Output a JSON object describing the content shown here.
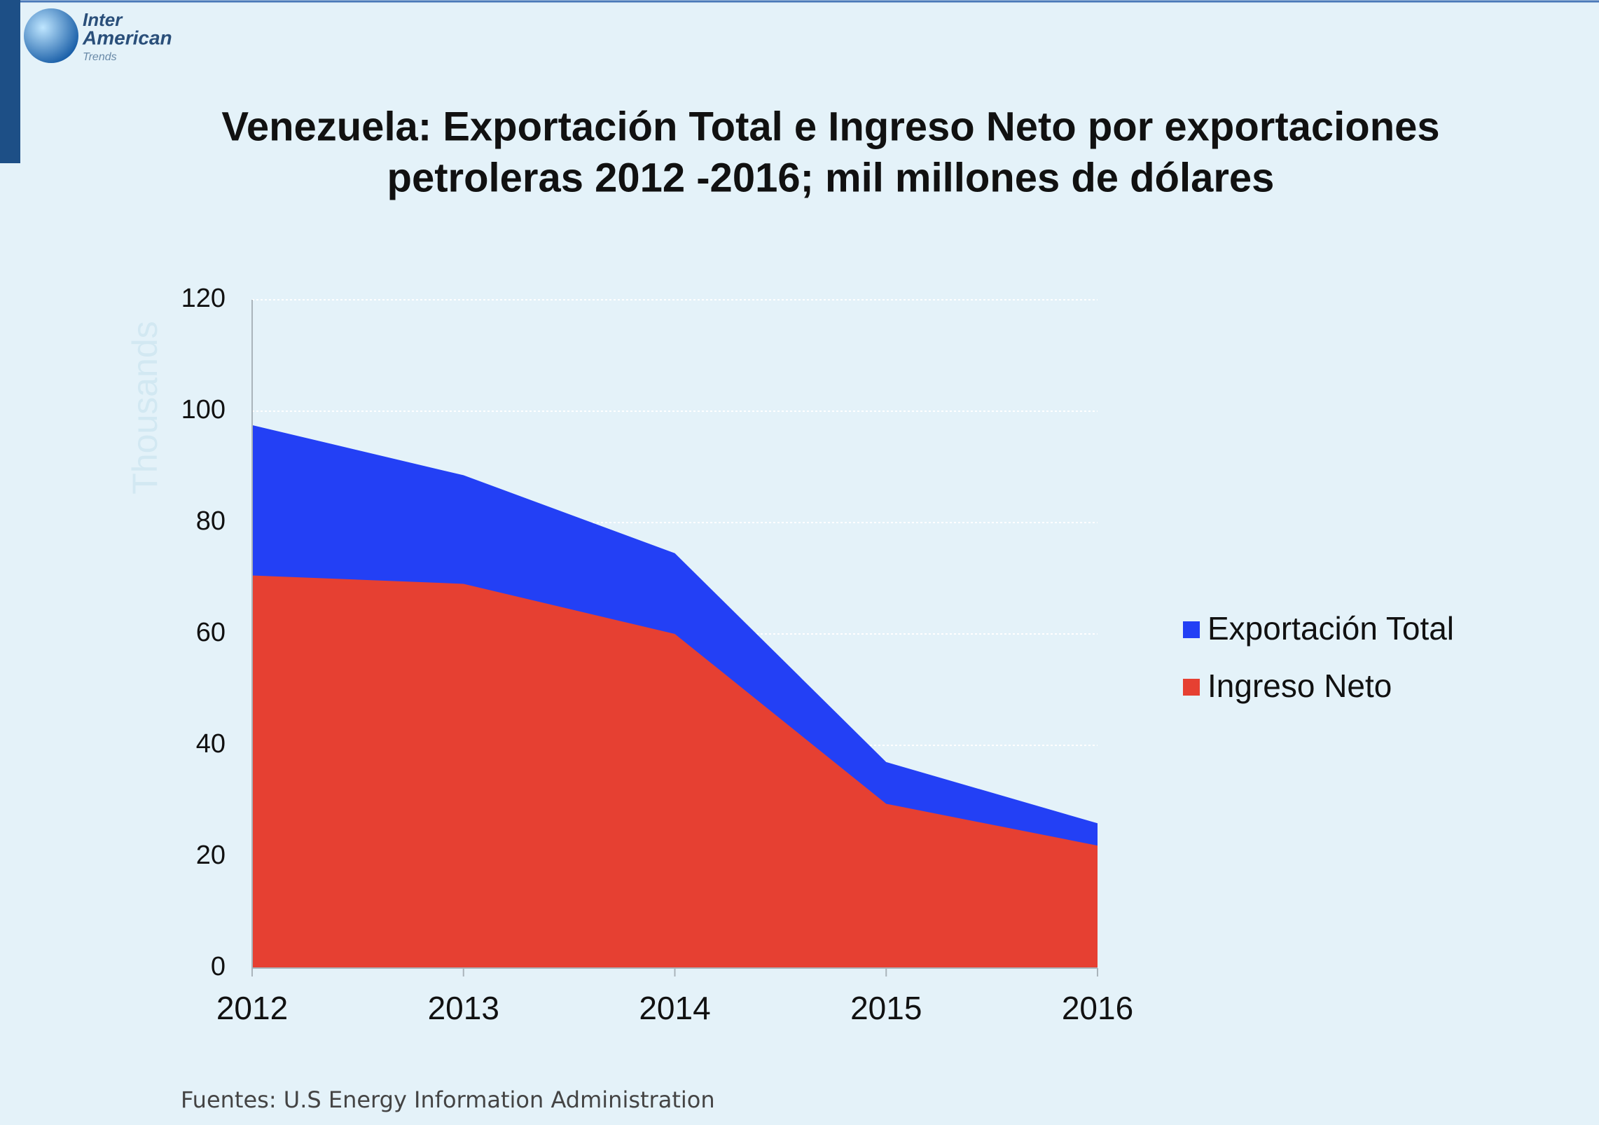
{
  "logo": {
    "line1": "Inter",
    "line2": "American",
    "line3": "Trends"
  },
  "chart_data": {
    "type": "area",
    "title": [
      "Venezuela: Exportación Total e Ingreso Neto por exportaciones",
      "petroleras 2012 -2016; mil millones de dólares"
    ],
    "y_axis_label": "Thousands",
    "x": [
      2012,
      2013,
      2014,
      2015,
      2016
    ],
    "xlim": [
      2012,
      2016
    ],
    "xticks": [
      2012,
      2013,
      2014,
      2015,
      2016
    ],
    "ylim": [
      0,
      120
    ],
    "yticks": [
      0,
      20,
      40,
      60,
      80,
      100,
      120
    ],
    "grid": true,
    "legend": "right",
    "series": [
      {
        "name": "Exportación Total",
        "color": "#2340f5",
        "values": [
          97.5,
          88.5,
          74.5,
          37,
          26
        ]
      },
      {
        "name": "Ingreso Neto",
        "color": "#e64032",
        "values": [
          70.5,
          69,
          60,
          29.5,
          22
        ]
      }
    ],
    "source": "Fuentes: U.S Energy Information Administration"
  }
}
